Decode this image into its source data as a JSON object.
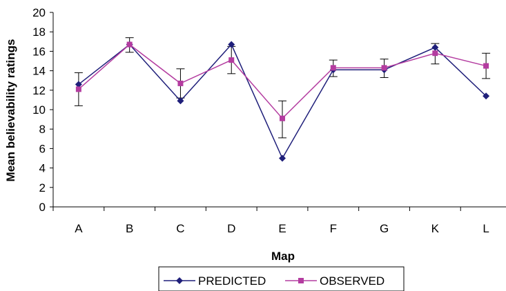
{
  "chart_data": {
    "type": "line",
    "xlabel": "Map",
    "ylabel": "Mean believability ratings",
    "categories": [
      "A",
      "B",
      "C",
      "D",
      "E",
      "F",
      "G",
      "K",
      "L"
    ],
    "ylim": [
      0,
      20
    ],
    "yticks": [
      0,
      2,
      4,
      6,
      8,
      10,
      12,
      14,
      16,
      18,
      20
    ],
    "grid": false,
    "legend_position": "bottom",
    "series": [
      {
        "name": "PREDICTED",
        "color": "#1f1f7a",
        "marker": "diamond",
        "values": [
          12.6,
          16.7,
          10.9,
          16.7,
          5.0,
          14.1,
          14.1,
          16.4,
          11.4
        ]
      },
      {
        "name": "OBSERVED",
        "color": "#b43ca0",
        "marker": "square",
        "values": [
          12.1,
          16.7,
          12.7,
          15.1,
          9.1,
          14.3,
          14.3,
          15.8,
          14.5
        ],
        "error_low": [
          10.4,
          15.9,
          11.2,
          13.7,
          7.1,
          13.4,
          13.3,
          14.7,
          13.2
        ],
        "error_high": [
          13.8,
          17.4,
          14.2,
          16.5,
          10.9,
          15.1,
          15.2,
          16.8,
          15.8
        ]
      }
    ]
  }
}
